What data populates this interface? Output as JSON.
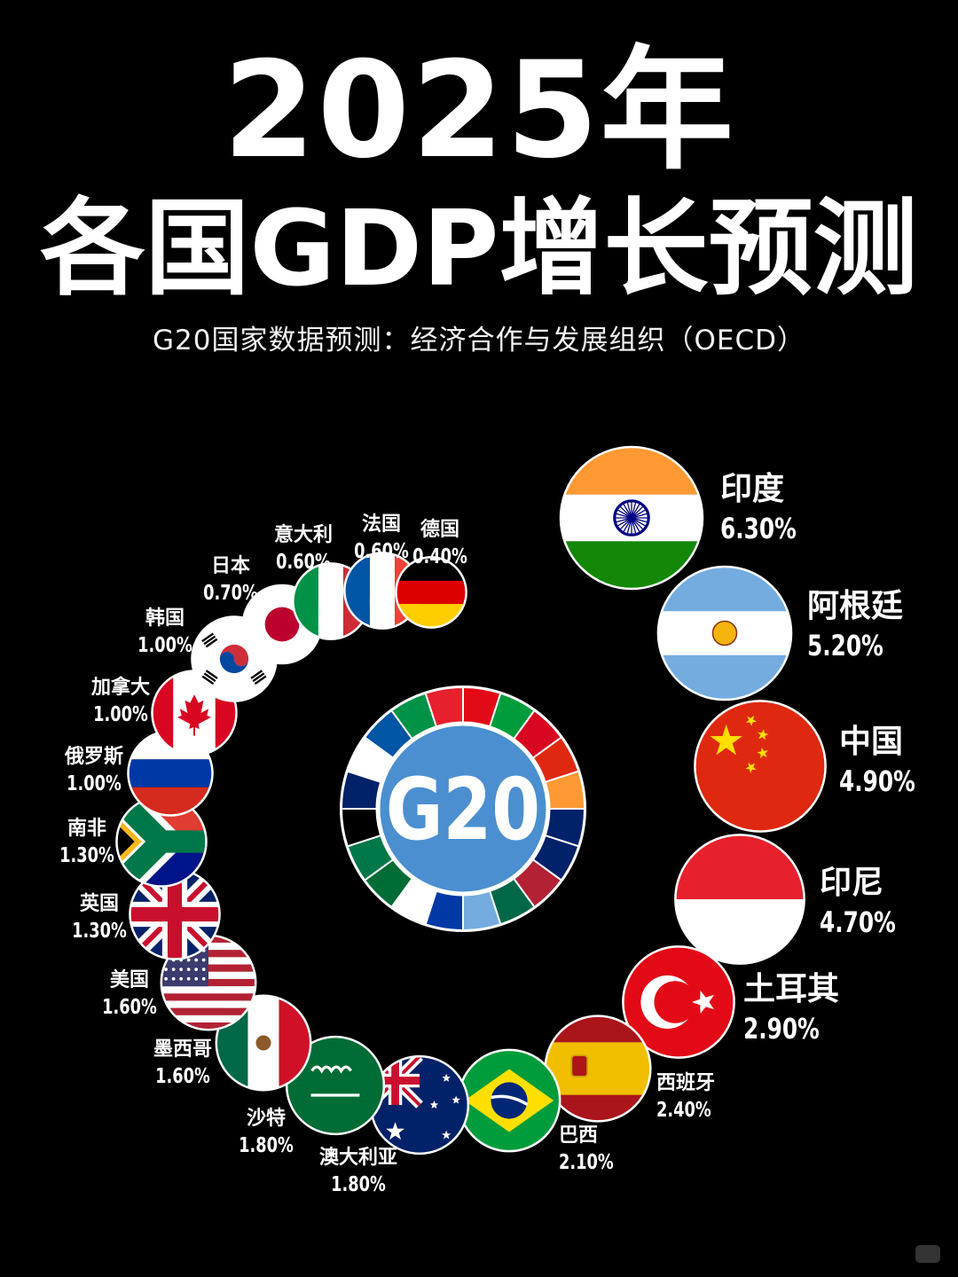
{
  "title_line1": "2025年",
  "title_line2": "各国GDP增长预测",
  "subtitle": "G20国家数据预测：经济合作与发展组织（OECD）",
  "center_badge": "G20",
  "colors": {
    "background": "#000000",
    "text": "#ffffff",
    "badge_blue": "#4b8fd0"
  },
  "chart_data": {
    "type": "bubble",
    "title": "2025年各国GDP增长预测",
    "subtitle": "G20国家数据预测：经济合作与发展组织（OECD）",
    "unit": "%",
    "points": [
      {
        "name": "印度",
        "value": 6.3,
        "label": "6.30%",
        "flag": "india"
      },
      {
        "name": "阿根廷",
        "value": 5.2,
        "label": "5.20%",
        "flag": "argentina"
      },
      {
        "name": "中国",
        "value": 4.9,
        "label": "4.90%",
        "flag": "china"
      },
      {
        "name": "印尼",
        "value": 4.7,
        "label": "4.70%",
        "flag": "indonesia"
      },
      {
        "name": "土耳其",
        "value": 2.9,
        "label": "2.90%",
        "flag": "turkey"
      },
      {
        "name": "西班牙",
        "value": 2.4,
        "label": "2.40%",
        "flag": "spain"
      },
      {
        "name": "巴西",
        "value": 2.1,
        "label": "2.10%",
        "flag": "brazil"
      },
      {
        "name": "澳大利亚",
        "value": 1.8,
        "label": "1.80%",
        "flag": "australia"
      },
      {
        "name": "沙特",
        "value": 1.8,
        "label": "1.80%",
        "flag": "saudi"
      },
      {
        "name": "墨西哥",
        "value": 1.6,
        "label": "1.60%",
        "flag": "mexico"
      },
      {
        "name": "美国",
        "value": 1.6,
        "label": "1.60%",
        "flag": "usa"
      },
      {
        "name": "英国",
        "value": 1.3,
        "label": "1.30%",
        "flag": "uk"
      },
      {
        "name": "南非",
        "value": 1.3,
        "label": "1.30%",
        "flag": "southafrica"
      },
      {
        "name": "俄罗斯",
        "value": 1.0,
        "label": "1.00%",
        "flag": "russia"
      },
      {
        "name": "加拿大",
        "value": 1.0,
        "label": "1.00%",
        "flag": "canada"
      },
      {
        "name": "韩国",
        "value": 1.0,
        "label": "1.00%",
        "flag": "korea"
      },
      {
        "name": "日本",
        "value": 0.7,
        "label": "0.70%",
        "flag": "japan"
      },
      {
        "name": "意大利",
        "value": 0.6,
        "label": "0.60%",
        "flag": "italy"
      },
      {
        "name": "法国",
        "value": 0.6,
        "label": "0.60%",
        "flag": "france"
      },
      {
        "name": "德国",
        "value": 0.4,
        "label": "0.40%",
        "flag": "germany"
      }
    ]
  }
}
